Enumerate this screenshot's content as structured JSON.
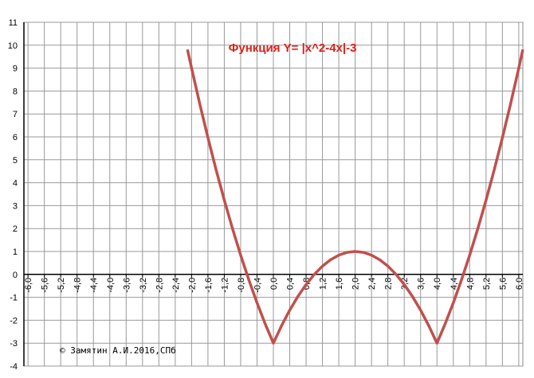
{
  "chart_data": {
    "type": "line",
    "title": "Функция Y= |x^2-4x|-3",
    "annotation": "© Замятин А.И.2016,СПб",
    "x": [
      -2.1,
      -2.0,
      -1.8,
      -1.6,
      -1.4,
      -1.2,
      -1.0,
      -0.8,
      -0.6,
      -0.4,
      -0.2,
      0,
      0.2,
      0.4,
      0.6,
      0.8,
      1.0,
      1.2,
      1.4,
      1.6,
      1.8,
      2.0,
      2.2,
      2.4,
      2.6,
      2.8,
      3.0,
      3.2,
      3.4,
      3.6,
      3.8,
      4.0,
      4.2,
      4.4,
      4.6,
      4.8,
      5.0,
      5.2,
      5.4,
      5.6,
      5.8,
      6.0,
      6.1
    ],
    "series": [
      {
        "color": "#c0504d",
        "values": [
          9.81,
          9,
          7.44,
          5.96,
          4.56,
          3.24,
          2,
          0.84,
          -0.24,
          -1.24,
          -2.16,
          -3,
          -2.24,
          -1.56,
          -0.96,
          -0.44,
          0,
          0.36,
          0.64,
          0.84,
          0.96,
          1,
          0.96,
          0.84,
          0.64,
          0.36,
          0,
          -0.44,
          -0.96,
          -1.56,
          -2.24,
          -3,
          -2.16,
          -1.24,
          -0.24,
          0.84,
          2,
          3.24,
          4.56,
          5.96,
          7.44,
          9,
          9.81
        ]
      }
    ],
    "xlim": [
      -6.1,
      6.1
    ],
    "ylim": [
      -4,
      11
    ],
    "xticks": [
      {
        "value": -6,
        "label": "-6,0"
      },
      {
        "value": -5.6,
        "label": "-5,6"
      },
      {
        "value": -5.2,
        "label": "-5,2"
      },
      {
        "value": -4.8,
        "label": "-4,8"
      },
      {
        "value": -4.4,
        "label": "-4,4"
      },
      {
        "value": -4,
        "label": "-4,0"
      },
      {
        "value": -3.6,
        "label": "-3,6"
      },
      {
        "value": -3.2,
        "label": "-3,2"
      },
      {
        "value": -2.8,
        "label": "-2,8"
      },
      {
        "value": -2.4,
        "label": "-2,4"
      },
      {
        "value": -2,
        "label": "-2,0"
      },
      {
        "value": -1.6,
        "label": "-1,6"
      },
      {
        "value": -1.2,
        "label": "-1,2"
      },
      {
        "value": -0.8,
        "label": "-0,8"
      },
      {
        "value": -0.4,
        "label": "-0,4"
      },
      {
        "value": 0,
        "label": "0,0"
      },
      {
        "value": 0.4,
        "label": "0,4"
      },
      {
        "value": 0.8,
        "label": "0,8"
      },
      {
        "value": 1.2,
        "label": "1,2"
      },
      {
        "value": 1.6,
        "label": "1,6"
      },
      {
        "value": 2,
        "label": "2,0"
      },
      {
        "value": 2.4,
        "label": "2,4"
      },
      {
        "value": 2.8,
        "label": "2,8"
      },
      {
        "value": 3.2,
        "label": "3,2"
      },
      {
        "value": 3.6,
        "label": "3,6"
      },
      {
        "value": 4,
        "label": "4,0"
      },
      {
        "value": 4.4,
        "label": "4,4"
      },
      {
        "value": 4.8,
        "label": "4,8"
      },
      {
        "value": 5.2,
        "label": "5,2"
      },
      {
        "value": 5.6,
        "label": "5,6"
      },
      {
        "value": 6,
        "label": "6,0"
      }
    ],
    "yticks": [
      -4,
      -3,
      -2,
      -1,
      0,
      1,
      2,
      3,
      4,
      5,
      6,
      7,
      8,
      9,
      10,
      11
    ],
    "grid": true
  }
}
